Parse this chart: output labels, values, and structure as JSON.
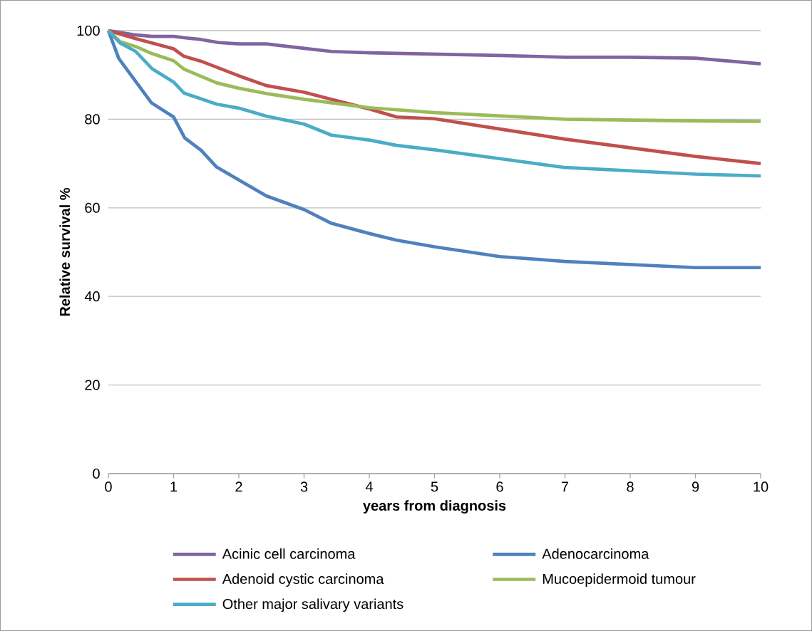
{
  "chart_data": {
    "type": "line",
    "xlabel": "years from diagnosis",
    "ylabel": "Relative survival %",
    "xlim": [
      0,
      10
    ],
    "ylim": [
      0,
      100
    ],
    "xticks": [
      0,
      1,
      2,
      3,
      4,
      5,
      6,
      7,
      8,
      9,
      10
    ],
    "yticks": [
      0,
      20,
      40,
      60,
      80,
      100
    ],
    "grid": "y",
    "legend": "bottom",
    "series": [
      {
        "name": "Acinic cell carcinoma",
        "color": "#8064a2",
        "x": [
          0,
          0.38,
          0.67,
          1,
          1.16,
          1.42,
          1.69,
          2,
          2.42,
          3,
          3.42,
          4,
          5,
          6,
          7,
          8,
          9,
          10
        ],
        "values": [
          100,
          99.1,
          98.7,
          98.7,
          98.4,
          98.0,
          97.3,
          97.0,
          97.0,
          96.0,
          95.3,
          95.0,
          94.7,
          94.4,
          94.0,
          94.0,
          93.8,
          92.5
        ]
      },
      {
        "name": "Adenocarcinoma",
        "color": "#4f81bd",
        "x": [
          0,
          0.16,
          0.66,
          1,
          1.17,
          1.42,
          1.66,
          2.42,
          3,
          3.42,
          4,
          4.42,
          5,
          6,
          7,
          9,
          10
        ],
        "values": [
          100,
          93.7,
          83.7,
          80.5,
          75.8,
          73.0,
          69.2,
          62.7,
          59.6,
          56.5,
          54.2,
          52.7,
          51.2,
          49.0,
          47.9,
          46.5,
          46.5
        ]
      },
      {
        "name": "Adenoid cystic carcinoma",
        "color": "#c0504d",
        "x": [
          0,
          0.42,
          1,
          1.16,
          1.42,
          2,
          2.42,
          3,
          3.42,
          4,
          4.42,
          5,
          6,
          7,
          9,
          10
        ],
        "values": [
          100,
          98.2,
          95.9,
          94.2,
          93.1,
          89.8,
          87.6,
          86.1,
          84.5,
          82.3,
          80.5,
          80.1,
          77.8,
          75.5,
          71.6,
          70.0
        ]
      },
      {
        "name": "Mucoepidermoid tumour",
        "color": "#9bbb59",
        "x": [
          0,
          0.18,
          0.42,
          0.67,
          1,
          1.16,
          1.42,
          1.66,
          2,
          2.42,
          3,
          3.42,
          4,
          5,
          7,
          9,
          10
        ],
        "values": [
          100,
          97.5,
          96.4,
          94.8,
          93.2,
          91.3,
          89.7,
          88.2,
          87.0,
          85.8,
          84.5,
          83.7,
          82.6,
          81.5,
          80.0,
          79.6,
          79.5
        ]
      },
      {
        "name": "Other major salivary variants",
        "color": "#4bacc6",
        "x": [
          0,
          0.18,
          0.42,
          0.67,
          1,
          1.16,
          1.42,
          1.66,
          2,
          2.42,
          3,
          3.42,
          4,
          4.42,
          5,
          6,
          7,
          9,
          10
        ],
        "values": [
          100,
          97.2,
          95.3,
          91.4,
          88.4,
          85.9,
          84.6,
          83.4,
          82.5,
          80.7,
          78.9,
          76.4,
          75.3,
          74.1,
          73.1,
          71.1,
          69.1,
          67.6,
          67.2
        ]
      }
    ]
  }
}
